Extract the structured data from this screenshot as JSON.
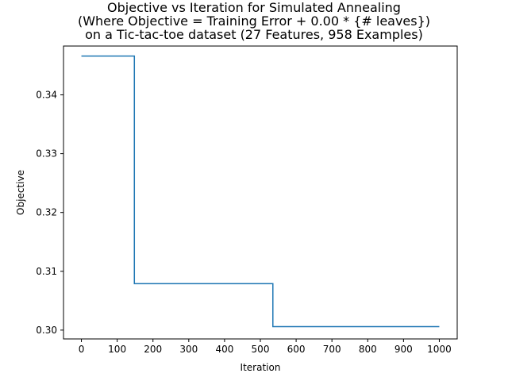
{
  "chart_data": {
    "type": "line",
    "title_lines": [
      "Objective vs Iteration for Simulated Annealing",
      "(Where Objective = Training Error + 0.00 * {# leaves})",
      "on a Tic-tac-toe dataset (27 Features, 958 Examples)"
    ],
    "xlabel": "Iteration",
    "ylabel": "Objective",
    "xlim": [
      -50,
      1050
    ],
    "ylim": [
      0.2985,
      0.3483
    ],
    "xticks": [
      0,
      100,
      200,
      300,
      400,
      500,
      600,
      700,
      800,
      900,
      1000
    ],
    "yticks": [
      0.3,
      0.31,
      0.32,
      0.33,
      0.34
    ],
    "ytick_labels": [
      "0.30",
      "0.31",
      "0.32",
      "0.33",
      "0.34"
    ],
    "grid": false,
    "series": [
      {
        "color": "#1f77b4",
        "step": true,
        "x": [
          0,
          148,
          148,
          535,
          535,
          1000
        ],
        "y": [
          0.3466,
          0.3466,
          0.3079,
          0.3079,
          0.3006,
          0.3006
        ]
      }
    ]
  }
}
